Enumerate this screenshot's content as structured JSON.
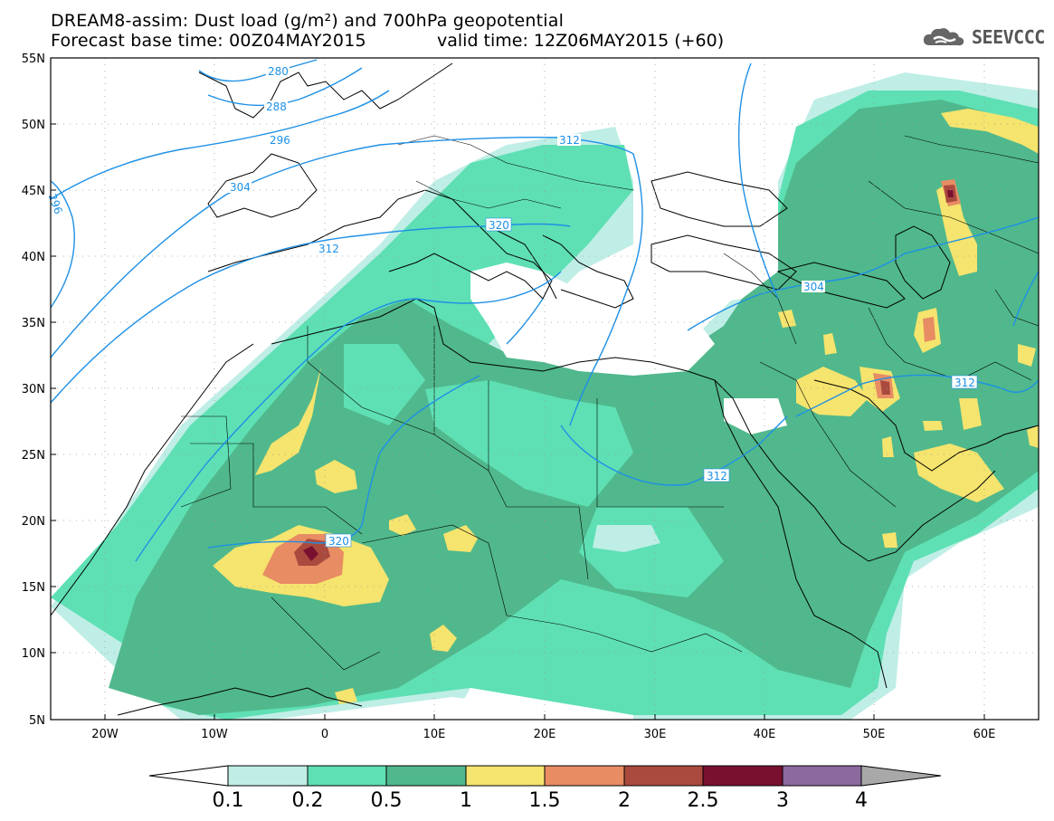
{
  "header": {
    "title_line1": "DREAM8-assim: Dust load (g/m²) and 700hPa geopotential",
    "title_line2_left": "Forecast base time: 00Z04MAY2015",
    "title_line2_right": "valid time: 12Z06MAY2015 (+60)"
  },
  "logo": {
    "text": "SEEVCCC",
    "icon": "cloud-icon"
  },
  "axes": {
    "lat_labels": [
      "55N",
      "50N",
      "45N",
      "40N",
      "35N",
      "30N",
      "25N",
      "20N",
      "15N",
      "10N",
      "5N"
    ],
    "lon_labels": [
      "20W",
      "10W",
      "0",
      "10E",
      "20E",
      "30E",
      "40E",
      "50E",
      "60E"
    ]
  },
  "contours": {
    "labels": [
      "280",
      "288",
      "296",
      "296",
      "304",
      "304",
      "312",
      "312",
      "312",
      "320",
      "320"
    ],
    "color": "#1e90e6"
  },
  "colorbar": {
    "labels": [
      "0.1",
      "0.2",
      "0.5",
      "1",
      "1.5",
      "2",
      "2.5",
      "3",
      "4"
    ],
    "colors": [
      "#ffffff",
      "#bfeee6",
      "#5ee0b4",
      "#50b88c",
      "#f5e46e",
      "#e88c64",
      "#aa4a3e",
      "#7a1030",
      "#8c6aa0",
      "#a8a8a8"
    ]
  },
  "legend_colors": {
    "c01": "#bfeee6",
    "c02": "#5ee0b4",
    "c05": "#50b88c",
    "c1": "#f5e46e",
    "c15": "#e88c64",
    "c2": "#aa4a3e",
    "c25": "#7a1030"
  }
}
